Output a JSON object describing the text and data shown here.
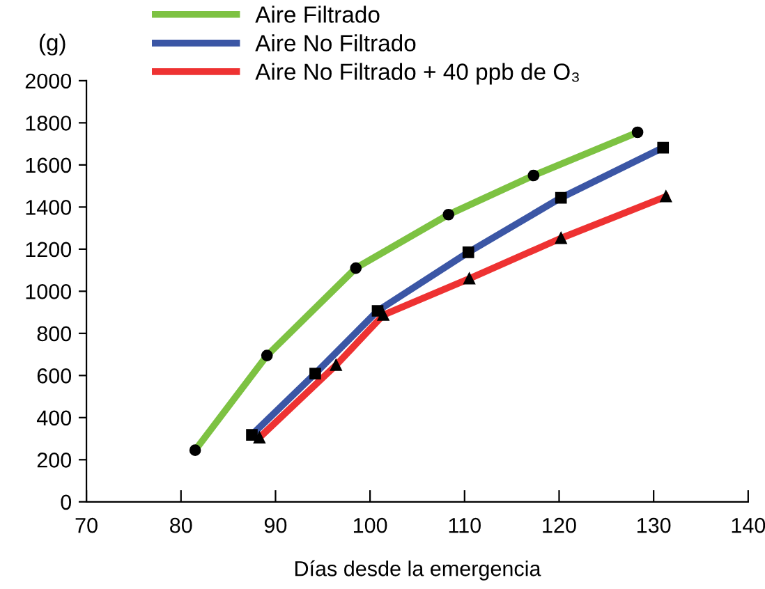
{
  "chart_data": {
    "type": "line",
    "xlabel": "Días desde la emergencia",
    "ylabel": "(g)",
    "xlim": [
      70,
      140
    ],
    "xticks": [
      70,
      80,
      90,
      100,
      110,
      120,
      130,
      140
    ],
    "ylim": [
      0,
      2000
    ],
    "yticks": [
      0,
      200,
      400,
      600,
      800,
      1000,
      1200,
      1400,
      1600,
      1800,
      2000
    ],
    "grid": false,
    "legend": "top left",
    "series": [
      {
        "name": "Aire Filtrado",
        "color": "#7dc242",
        "marker": "circle",
        "x": [
          81.5,
          89.1,
          98.5,
          108.3,
          117.3,
          128.3
        ],
        "values": [
          245,
          695,
          1110,
          1364,
          1550,
          1755
        ]
      },
      {
        "name": "Aire No Filtrado",
        "color": "#3b56a5",
        "marker": "square",
        "x": [
          87.5,
          94.2,
          100.8,
          110.4,
          120.2,
          131
        ],
        "values": [
          318,
          609,
          907,
          1185,
          1444,
          1682
        ]
      },
      {
        "name": "Aire No Filtrado + 40 ppb de O₃",
        "color": "#ee3232",
        "marker": "triangle",
        "x": [
          88.3,
          96.4,
          101.4,
          110.5,
          120.2,
          131.3
        ],
        "values": [
          305,
          649,
          887,
          1060,
          1252,
          1450
        ]
      }
    ]
  }
}
